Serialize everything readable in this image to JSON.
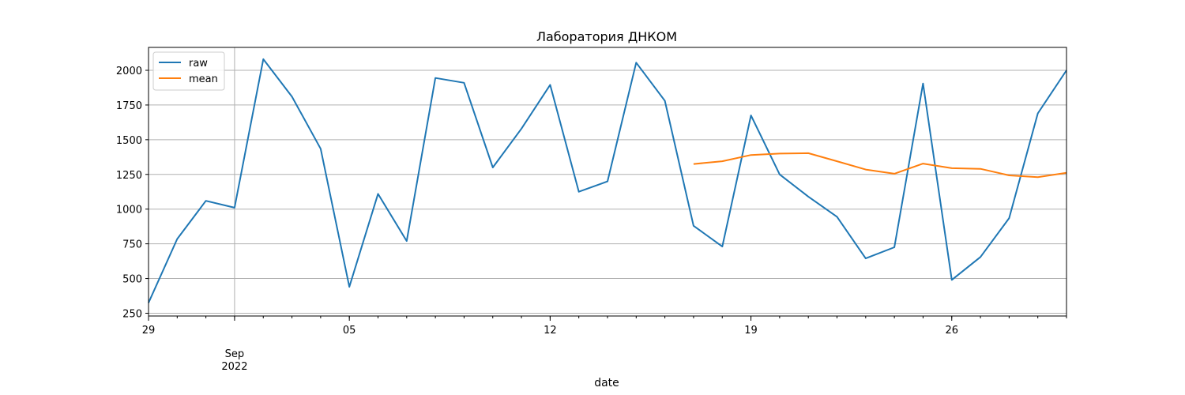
{
  "chart_data": {
    "type": "line",
    "title": "Лаборатория ДНКОМ",
    "xlabel": "date",
    "ylabel": "",
    "x_start": "2022-08-29",
    "x_end": "2022-09-30",
    "ylim": [
      230,
      2165
    ],
    "grid": true,
    "legend_position": "top-left",
    "y_ticks": [
      250,
      500,
      750,
      1000,
      1250,
      1500,
      1750,
      2000
    ],
    "y_tick_labels": [
      "250",
      "500",
      "750",
      "1000",
      "1250",
      "1500",
      "1750",
      "2000"
    ],
    "x_major_ticks": [
      {
        "date": "2022-08-29",
        "label": "29"
      },
      {
        "date": "2022-09-01",
        "label": "Sep\n2022"
      },
      {
        "date": "2022-09-05",
        "label": "05"
      },
      {
        "date": "2022-09-12",
        "label": "12"
      },
      {
        "date": "2022-09-19",
        "label": "19"
      },
      {
        "date": "2022-09-26",
        "label": "26"
      }
    ],
    "series": [
      {
        "name": "raw",
        "color": "#1f77b4",
        "x": [
          "2022-08-29",
          "2022-08-30",
          "2022-08-31",
          "2022-09-01",
          "2022-09-02",
          "2022-09-03",
          "2022-09-04",
          "2022-09-05",
          "2022-09-06",
          "2022-09-07",
          "2022-09-08",
          "2022-09-09",
          "2022-09-10",
          "2022-09-11",
          "2022-09-12",
          "2022-09-13",
          "2022-09-14",
          "2022-09-15",
          "2022-09-16",
          "2022-09-17",
          "2022-09-18",
          "2022-09-19",
          "2022-09-20",
          "2022-09-21",
          "2022-09-22",
          "2022-09-23",
          "2022-09-24",
          "2022-09-25",
          "2022-09-26",
          "2022-09-27",
          "2022-09-28",
          "2022-09-29",
          "2022-09-30"
        ],
        "values": [
          325,
          785,
          1060,
          1010,
          2080,
          1810,
          1435,
          440,
          1110,
          770,
          1945,
          1910,
          1300,
          1580,
          1895,
          1125,
          1200,
          2055,
          1780,
          880,
          730,
          1675,
          1250,
          1090,
          945,
          645,
          725,
          1905,
          490,
          655,
          935,
          1690,
          2000
        ]
      },
      {
        "name": "mean",
        "color": "#ff7f0e",
        "x": [
          "2022-09-17",
          "2022-09-18",
          "2022-09-19",
          "2022-09-20",
          "2022-09-21",
          "2022-09-22",
          "2022-09-23",
          "2022-09-24",
          "2022-09-25",
          "2022-09-26",
          "2022-09-27",
          "2022-09-28",
          "2022-09-29",
          "2022-09-30"
        ],
        "values": [
          1325,
          1345,
          1390,
          1400,
          1403,
          1345,
          1285,
          1255,
          1328,
          1295,
          1290,
          1243,
          1230,
          1262
        ]
      }
    ]
  }
}
